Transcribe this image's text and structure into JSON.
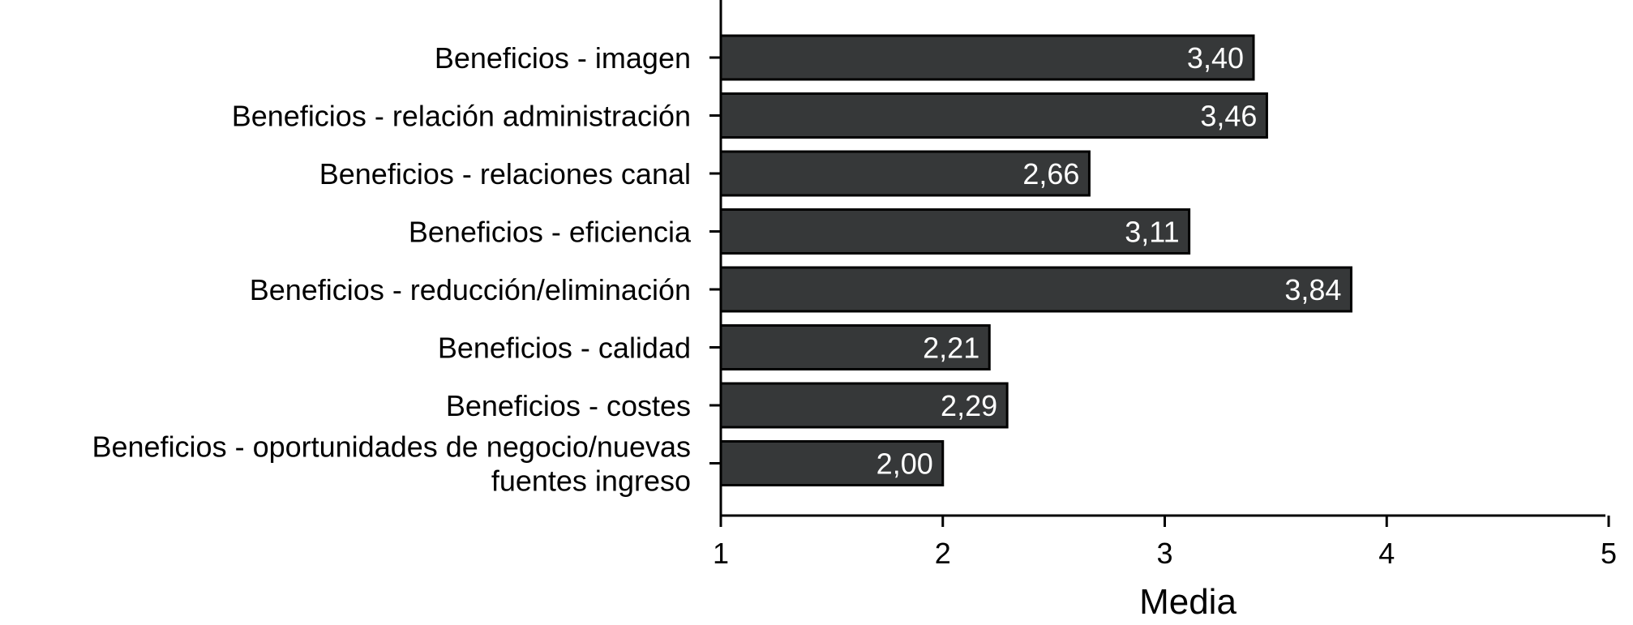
{
  "chart_data": {
    "type": "bar",
    "orientation": "horizontal",
    "title": "",
    "xlabel": "Media",
    "ylabel": "",
    "xlim": [
      1,
      5
    ],
    "x_ticks": [
      {
        "value": 1,
        "label": "1"
      },
      {
        "value": 2,
        "label": "2"
      },
      {
        "value": 3,
        "label": "3"
      },
      {
        "value": 4,
        "label": "4"
      },
      {
        "value": 5,
        "label": "5"
      }
    ],
    "grid": false,
    "bar_color": "#363839",
    "value_label_color": "#ffffff",
    "categories": [
      {
        "lines": [
          "Beneficios - imagen"
        ]
      },
      {
        "lines": [
          "Beneficios - relación administración"
        ]
      },
      {
        "lines": [
          "Beneficios - relaciones canal"
        ]
      },
      {
        "lines": [
          "Beneficios - eficiencia"
        ]
      },
      {
        "lines": [
          "Beneficios - reducción/eliminación"
        ]
      },
      {
        "lines": [
          "Beneficios - calidad"
        ]
      },
      {
        "lines": [
          "Beneficios - costes"
        ]
      },
      {
        "lines": [
          "Beneficios - oportunidades de negocio/nuevas",
          "fuentes ingreso"
        ]
      }
    ],
    "values": [
      3.4,
      3.46,
      2.66,
      3.11,
      3.84,
      2.21,
      2.29,
      2.0
    ],
    "value_labels": [
      "3,40",
      "3,46",
      "2,66",
      "3,11",
      "3,84",
      "2,21",
      "2,29",
      "2,00"
    ]
  }
}
